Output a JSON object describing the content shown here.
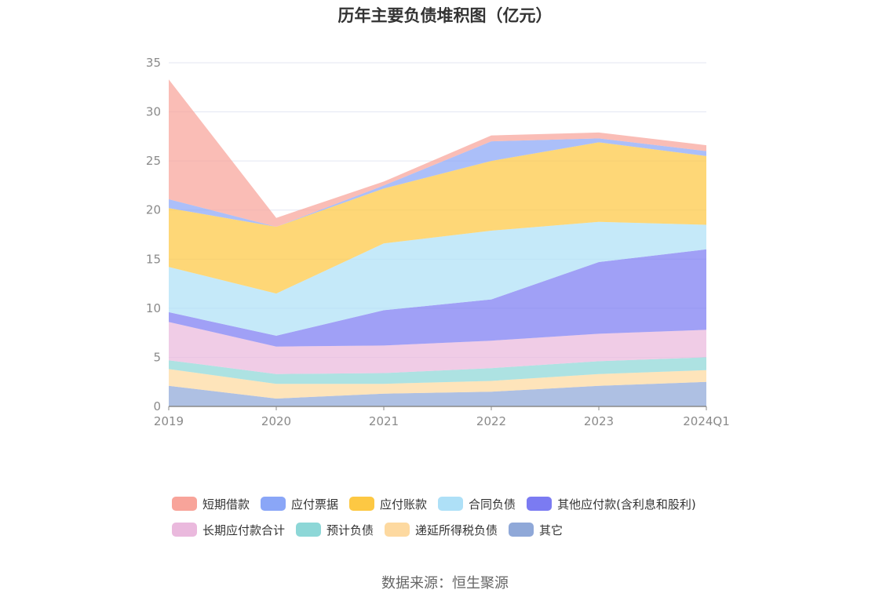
{
  "chart_data": {
    "type": "area",
    "stacked": true,
    "title": "历年主要负债堆积图（亿元）",
    "categories": [
      "2019",
      "2020",
      "2021",
      "2022",
      "2023",
      "2024Q1"
    ],
    "ylim": [
      0,
      35
    ],
    "yticks": [
      "0",
      "5",
      "10",
      "15",
      "20",
      "25",
      "30",
      "35"
    ],
    "grid": true,
    "legend_position": "bottom",
    "series": [
      {
        "name": "其它",
        "color": "#8fa8d8",
        "values": [
          2.1,
          0.8,
          1.3,
          1.5,
          2.1,
          2.5
        ]
      },
      {
        "name": "递延所得税负债",
        "color": "#fdd9a0",
        "values": [
          1.7,
          1.5,
          1.0,
          1.1,
          1.2,
          1.2
        ]
      },
      {
        "name": "预计负债",
        "color": "#8dd7d7",
        "values": [
          0.9,
          1.0,
          1.1,
          1.3,
          1.3,
          1.3
        ]
      },
      {
        "name": "长期应付款合计",
        "color": "#eab9dd",
        "values": [
          3.9,
          2.8,
          2.8,
          2.8,
          2.8,
          2.8
        ]
      },
      {
        "name": "其他应付款(含利息和股利)",
        "color": "#7b7bf2",
        "values": [
          1.0,
          1.1,
          3.6,
          4.2,
          7.3,
          8.2
        ]
      },
      {
        "name": "合同负债",
        "color": "#aee0f7",
        "values": [
          4.6,
          4.3,
          6.8,
          7.0,
          4.1,
          2.5
        ]
      },
      {
        "name": "应付账款",
        "color": "#fdc843",
        "values": [
          6.0,
          6.8,
          5.6,
          7.1,
          8.1,
          7.0
        ]
      },
      {
        "name": "应付票据",
        "color": "#8aa6f7",
        "values": [
          0.9,
          0.0,
          0.3,
          2.0,
          0.4,
          0.5
        ]
      },
      {
        "name": "短期借款",
        "color": "#f8a49a",
        "values": [
          12.2,
          0.9,
          0.4,
          0.6,
          0.6,
          0.6
        ]
      }
    ]
  },
  "legend": [
    {
      "label": "短期借款",
      "color": "#f8a49a"
    },
    {
      "label": "应付票据",
      "color": "#8aa6f7"
    },
    {
      "label": "应付账款",
      "color": "#fdc843"
    },
    {
      "label": "合同负债",
      "color": "#aee0f7"
    },
    {
      "label": "其他应付款(含利息和股利)",
      "color": "#7b7bf2"
    },
    {
      "label": "长期应付款合计",
      "color": "#eab9dd"
    },
    {
      "label": "预计负债",
      "color": "#8dd7d7"
    },
    {
      "label": "递延所得税负债",
      "color": "#fdd9a0"
    },
    {
      "label": "其它",
      "color": "#8fa8d8"
    }
  ],
  "source": "数据来源：恒生聚源"
}
